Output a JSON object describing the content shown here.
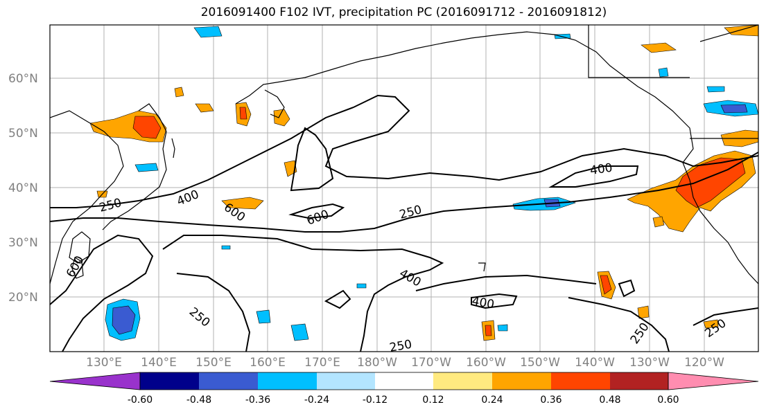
{
  "title": "2016091400 F102 IVT, precipitation PC (2016091712 - 2016091812)",
  "lat_labels": [
    "60°N",
    "50°N",
    "40°N",
    "30°N",
    "20°N"
  ],
  "lon_labels": [
    "130°E",
    "140°E",
    "150°E",
    "160°E",
    "170°E",
    "180°W",
    "170°W",
    "160°W",
    "150°W",
    "140°W",
    "130°W",
    "120°W"
  ],
  "contour_labels": [
    "250",
    "400",
    "600",
    "600",
    "250",
    "400",
    "250",
    "600",
    "400",
    "400",
    "250",
    "250",
    "250",
    "250"
  ],
  "colorbar": {
    "ticks": [
      "-0.60",
      "-0.48",
      "-0.36",
      "-0.24",
      "-0.12",
      "0.12",
      "0.24",
      "0.36",
      "0.48",
      "0.60"
    ],
    "colors": [
      "#9932cc",
      "#00008b",
      "#3a5bd1",
      "#00bfff",
      "#b3e5ff",
      "#ffffff",
      "#ffea80",
      "#ffa500",
      "#ff4500",
      "#b22222",
      "#ff8db0"
    ]
  }
}
